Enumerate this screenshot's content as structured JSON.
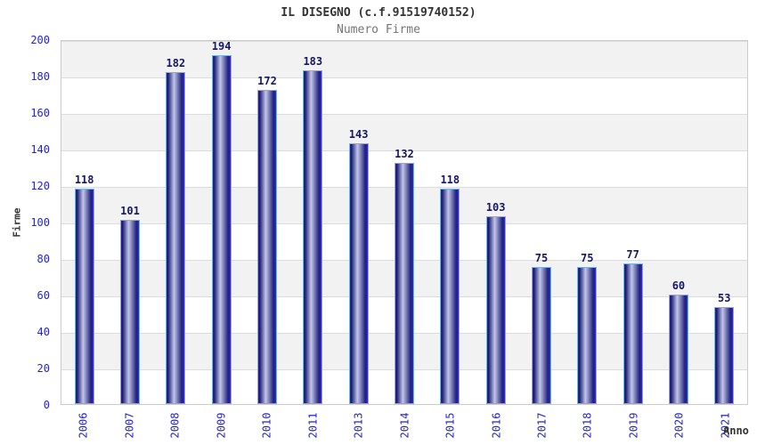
{
  "chart_data": {
    "type": "bar",
    "title": "IL DISEGNO (c.f.91519740152)",
    "subtitle": "Numero Firme",
    "xlabel": "Anno",
    "ylabel": "Firme",
    "categories": [
      "2006",
      "2007",
      "2008",
      "2009",
      "2010",
      "2011",
      "2013",
      "2014",
      "2015",
      "2016",
      "2017",
      "2018",
      "2019",
      "2020",
      "2021"
    ],
    "values": [
      118,
      101,
      182,
      194,
      172,
      183,
      143,
      132,
      118,
      103,
      75,
      75,
      77,
      60,
      53
    ],
    "ylim": [
      0,
      200
    ],
    "ytick_step": 20,
    "y_ticks": [
      0,
      20,
      40,
      60,
      80,
      100,
      120,
      140,
      160,
      180,
      200
    ],
    "grid": "horizontal gridlines with alternating gray/white bands every 20 units",
    "legend_position": "none",
    "bar_value_labels": "shown above each bar"
  },
  "colors": {
    "title_color": "#333333",
    "subtitle_color": "#757575",
    "axis_blue": "#2323cf",
    "value_label": "#16166b",
    "axis_name": "#333333",
    "band_gray": "#f2f2f2",
    "grid_line": "#dcdcdc",
    "plot_border": "#cccccc",
    "bar_border": "#7cb0e2",
    "bar_dark": "#1c1c74",
    "bar_dark2": "#20207c",
    "bar_light": "#c2c7e8",
    "bar_edge": "#28288e",
    "bar_edge_right": "#2d2dce"
  }
}
